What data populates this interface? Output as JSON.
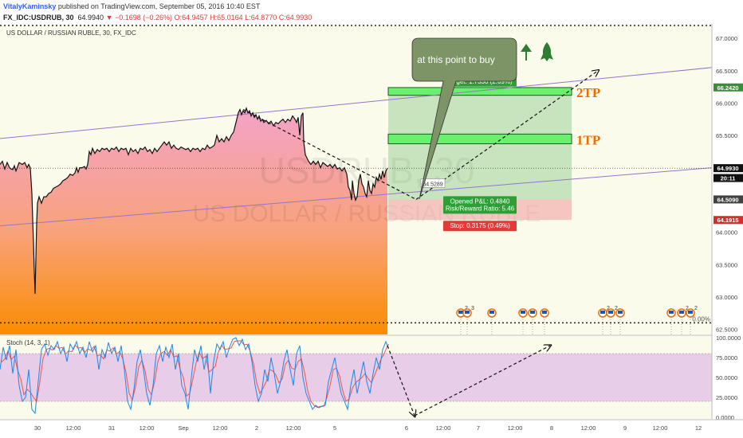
{
  "publish": {
    "author": "VitalyKaminsky",
    "text": "published on TradingView.com, September 05, 2016 10:40 EST"
  },
  "quote": {
    "symbol": "FX_IDC:USDRUB, 30",
    "last": "64.9940",
    "change": "▼ −0.1698 (−0.26%)",
    "o": "O:64.9457",
    "h": "H:65.0164",
    "l": "L:64.8770",
    "c": "C:64.9930"
  },
  "chart_data": {
    "type": "line",
    "title": "US DOLLAR / RUSSIAN RUBLE, 30, FX_IDC",
    "watermark": {
      "symbol": "USDRUB, 30",
      "name": "US DOLLAR / RUSSIAN RUBLE"
    },
    "price_axis": {
      "min": 62.42,
      "max": 67.2,
      "ticks": [
        "67.0000",
        "66.5000",
        "66.0000",
        "65.5000",
        "65.0000",
        "64.5000",
        "64.0000",
        "63.5000",
        "63.0000",
        "62.5000"
      ]
    },
    "time_axis": {
      "ticks": [
        "30",
        "12:00",
        "31",
        "12:00",
        "Sep",
        "12:00",
        "2",
        "12:00",
        "5",
        "6",
        "12:00",
        "7",
        "12:00",
        "8",
        "12:00",
        "9",
        "12:00",
        "12"
      ]
    },
    "price_series": [
      [
        0,
        65.05
      ],
      [
        3,
        65.1
      ],
      [
        6,
        64.98
      ],
      [
        9,
        65.08
      ],
      [
        12,
        65.0
      ],
      [
        14,
        64.98
      ],
      [
        16,
        64.97
      ],
      [
        18,
        65.03
      ],
      [
        20,
        64.95
      ],
      [
        24,
        65.08
      ],
      [
        28,
        65.05
      ],
      [
        31,
        65.08
      ],
      [
        34,
        65.0
      ],
      [
        36,
        65.05
      ],
      [
        38,
        65.0
      ],
      [
        40,
        64.6
      ],
      [
        41,
        64.2
      ],
      [
        42,
        63.85
      ],
      [
        43,
        63.4
      ],
      [
        44,
        63.05
      ],
      [
        45,
        63.6
      ],
      [
        46,
        64.15
      ],
      [
        47,
        64.45
      ],
      [
        49,
        64.55
      ],
      [
        52,
        64.45
      ],
      [
        55,
        64.55
      ],
      [
        58,
        64.55
      ],
      [
        61,
        64.6
      ],
      [
        64,
        64.62
      ],
      [
        67,
        64.68
      ],
      [
        70,
        64.7
      ],
      [
        73,
        64.72
      ],
      [
        76,
        64.75
      ],
      [
        79,
        64.8
      ],
      [
        82,
        64.82
      ],
      [
        85,
        64.85
      ],
      [
        88,
        64.9
      ],
      [
        91,
        64.88
      ],
      [
        94,
        64.92
      ],
      [
        96,
        65.0
      ],
      [
        98,
        64.93
      ],
      [
        100,
        65.0
      ],
      [
        103,
        65.0
      ],
      [
        106,
        65.02
      ],
      [
        108,
        64.98
      ],
      [
        110,
        65.05
      ],
      [
        112,
        65.25
      ],
      [
        114,
        65.2
      ],
      [
        116,
        65.3
      ],
      [
        119,
        65.22
      ],
      [
        122,
        65.28
      ],
      [
        125,
        65.25
      ],
      [
        128,
        65.3
      ],
      [
        131,
        65.28
      ],
      [
        134,
        65.3
      ],
      [
        137,
        65.25
      ],
      [
        140,
        65.3
      ],
      [
        143,
        65.28
      ],
      [
        146,
        65.32
      ],
      [
        149,
        65.25
      ],
      [
        152,
        65.3
      ],
      [
        155,
        65.28
      ],
      [
        158,
        65.3
      ],
      [
        161,
        65.2
      ],
      [
        164,
        65.3
      ],
      [
        167,
        65.25
      ],
      [
        170,
        65.28
      ],
      [
        173,
        65.22
      ],
      [
        176,
        65.3
      ],
      [
        179,
        65.28
      ],
      [
        182,
        65.32
      ],
      [
        185,
        65.25
      ],
      [
        188,
        65.28
      ],
      [
        191,
        65.22
      ],
      [
        194,
        65.3
      ],
      [
        197,
        65.25
      ],
      [
        200,
        65.3
      ],
      [
        203,
        65.35
      ],
      [
        206,
        65.4
      ],
      [
        209,
        65.35
      ],
      [
        212,
        65.4
      ],
      [
        215,
        65.3
      ],
      [
        218,
        65.35
      ],
      [
        221,
        65.3
      ],
      [
        224,
        65.28
      ],
      [
        227,
        65.32
      ],
      [
        230,
        65.3
      ],
      [
        233,
        65.28
      ],
      [
        236,
        65.3
      ],
      [
        239,
        65.25
      ],
      [
        242,
        65.3
      ],
      [
        245,
        65.28
      ],
      [
        248,
        65.3
      ],
      [
        251,
        65.25
      ],
      [
        254,
        65.3
      ],
      [
        257,
        65.28
      ],
      [
        260,
        65.35
      ],
      [
        263,
        65.3
      ],
      [
        266,
        65.32
      ],
      [
        269,
        65.35
      ],
      [
        272,
        65.5
      ],
      [
        275,
        65.4
      ],
      [
        278,
        65.45
      ],
      [
        281,
        65.4
      ],
      [
        284,
        65.48
      ],
      [
        287,
        65.42
      ],
      [
        290,
        65.5
      ],
      [
        293,
        65.55
      ],
      [
        295,
        65.65
      ],
      [
        297,
        65.75
      ],
      [
        299,
        65.85
      ],
      [
        301,
        65.9
      ],
      [
        303,
        65.82
      ],
      [
        305,
        65.88
      ],
      [
        307,
        65.85
      ],
      [
        309,
        65.92
      ],
      [
        311,
        65.85
      ],
      [
        313,
        65.88
      ],
      [
        315,
        65.8
      ],
      [
        317,
        65.85
      ],
      [
        319,
        65.78
      ],
      [
        321,
        65.82
      ],
      [
        323,
        65.75
      ],
      [
        325,
        65.8
      ],
      [
        327,
        65.72
      ],
      [
        329,
        65.75
      ],
      [
        331,
        65.7
      ],
      [
        334,
        65.73
      ],
      [
        337,
        65.68
      ],
      [
        340,
        65.72
      ],
      [
        343,
        65.65
      ],
      [
        346,
        65.7
      ],
      [
        349,
        65.68
      ],
      [
        352,
        65.72
      ],
      [
        355,
        65.75
      ],
      [
        358,
        65.7
      ],
      [
        361,
        65.75
      ],
      [
        364,
        65.72
      ],
      [
        367,
        65.8
      ],
      [
        370,
        65.75
      ],
      [
        372,
        65.7
      ],
      [
        374,
        65.78
      ],
      [
        376,
        65.5
      ],
      [
        378,
        65.8
      ],
      [
        380,
        65.85
      ],
      [
        381,
        65.4
      ],
      [
        383,
        65.2
      ],
      [
        385,
        65.15
      ],
      [
        387,
        65.1
      ],
      [
        390,
        65.05
      ],
      [
        393,
        65.1
      ],
      [
        396,
        65.05
      ],
      [
        399,
        65.1
      ],
      [
        402,
        65.0
      ],
      [
        405,
        65.08
      ],
      [
        408,
        65.05
      ],
      [
        411,
        65.02
      ],
      [
        414,
        65.05
      ],
      [
        417,
        65.0
      ],
      [
        420,
        65.05
      ],
      [
        423,
        64.98
      ],
      [
        426,
        65.0
      ],
      [
        429,
        64.95
      ],
      [
        432,
        65.0
      ],
      [
        435,
        64.9
      ],
      [
        437,
        64.7
      ],
      [
        439,
        64.65
      ],
      [
        441,
        64.5
      ],
      [
        442,
        64.8
      ],
      [
        444,
        64.6
      ],
      [
        446,
        64.5
      ],
      [
        448,
        64.55
      ],
      [
        450,
        64.8
      ],
      [
        452,
        64.9
      ],
      [
        454,
        64.75
      ],
      [
        456,
        64.7
      ],
      [
        458,
        64.6
      ],
      [
        460,
        64.55
      ],
      [
        462,
        64.8
      ],
      [
        464,
        64.65
      ],
      [
        466,
        64.6
      ],
      [
        468,
        64.75
      ],
      [
        470,
        64.7
      ],
      [
        472,
        64.85
      ],
      [
        474,
        64.8
      ],
      [
        476,
        64.9
      ],
      [
        478,
        64.82
      ],
      [
        480,
        64.95
      ],
      [
        482,
        64.85
      ],
      [
        484,
        64.95
      ],
      [
        486,
        64.99
      ]
    ],
    "channel_upper": {
      "from": [
        0,
        65.45
      ],
      "to": [
        893,
        66.55
      ]
    },
    "channel_lower": {
      "from": [
        0,
        64.1
      ],
      "to": [
        893,
        65.0
      ]
    },
    "horizontal_levels": [
      {
        "price": 67.2,
        "style": "dotted"
      },
      {
        "price": 62.6,
        "style": "dotted",
        "label": "0.00%"
      },
      {
        "price": 64.993,
        "style": "dotted-thin"
      }
    ],
    "position": {
      "entry": 64.509,
      "target": 66.242,
      "stop": 64.1915,
      "target_label": "Target: 1.7330 (2.69%)",
      "pl_label": "Opened P&L: 0.4840",
      "rr_label": "Risk/Reward Ratio: 5.46",
      "stop_label": "Stop: 0.3175 (0.49%)",
      "entry_tag": "64.5289"
    },
    "take_profit_zones": [
      {
        "label": "2TP",
        "low": 66.12,
        "high": 66.24
      },
      {
        "label": "1TP",
        "low": 65.37,
        "high": 65.52
      }
    ],
    "projection_path": [
      [
        305,
        65.9
      ],
      [
        522,
        64.509
      ],
      [
        750,
        66.5
      ]
    ],
    "price_labels": [
      {
        "text": "66.2420",
        "price": 66.242,
        "color": "#388e3c"
      },
      {
        "text": "64.9930",
        "price": 64.993,
        "color": "#111111"
      },
      {
        "text": "20:11",
        "price": 64.84,
        "color": "#111111"
      },
      {
        "text": "64.5090",
        "price": 64.509,
        "color": "#424242"
      },
      {
        "text": "64.1915",
        "price": 64.1915,
        "color": "#d32f2f"
      }
    ],
    "callout": "at this point to buy",
    "event_marker_groups": [
      [
        578,
        "2"
      ],
      [
        586,
        "3"
      ],
      [
        617,
        ""
      ],
      [
        656,
        ""
      ],
      [
        668,
        ""
      ],
      [
        683,
        ""
      ],
      [
        756,
        "2"
      ],
      [
        766,
        "2"
      ],
      [
        778,
        ""
      ],
      [
        842,
        ""
      ],
      [
        855,
        "2"
      ],
      [
        866,
        "2"
      ]
    ],
    "stochastic": {
      "title": "Stoch (14, 3, 1)",
      "ticks": [
        "100.0000",
        "75.0000",
        "50.0000",
        "25.0000",
        "0.0000"
      ],
      "upper_band": 80,
      "lower_band": 20,
      "k": [
        [
          0,
          60
        ],
        [
          4,
          88
        ],
        [
          8,
          72
        ],
        [
          12,
          90
        ],
        [
          16,
          55
        ],
        [
          20,
          85
        ],
        [
          24,
          40
        ],
        [
          28,
          20
        ],
        [
          32,
          25
        ],
        [
          36,
          60
        ],
        [
          40,
          10
        ],
        [
          44,
          5
        ],
        [
          48,
          45
        ],
        [
          52,
          85
        ],
        [
          56,
          92
        ],
        [
          60,
          78
        ],
        [
          64,
          90
        ],
        [
          68,
          85
        ],
        [
          72,
          95
        ],
        [
          76,
          80
        ],
        [
          80,
          88
        ],
        [
          84,
          70
        ],
        [
          88,
          92
        ],
        [
          92,
          85
        ],
        [
          96,
          95
        ],
        [
          100,
          80
        ],
        [
          104,
          88
        ],
        [
          108,
          75
        ],
        [
          112,
          95
        ],
        [
          116,
          82
        ],
        [
          120,
          90
        ],
        [
          124,
          60
        ],
        [
          128,
          85
        ],
        [
          132,
          75
        ],
        [
          136,
          94
        ],
        [
          140,
          80
        ],
        [
          144,
          88
        ],
        [
          148,
          70
        ],
        [
          152,
          90
        ],
        [
          156,
          60
        ],
        [
          160,
          20
        ],
        [
          164,
          10
        ],
        [
          168,
          35
        ],
        [
          172,
          70
        ],
        [
          176,
          85
        ],
        [
          180,
          60
        ],
        [
          184,
          30
        ],
        [
          188,
          15
        ],
        [
          192,
          40
        ],
        [
          196,
          80
        ],
        [
          200,
          90
        ],
        [
          204,
          70
        ],
        [
          208,
          88
        ],
        [
          212,
          75
        ],
        [
          216,
          92
        ],
        [
          220,
          60
        ],
        [
          224,
          80
        ],
        [
          228,
          40
        ],
        [
          232,
          30
        ],
        [
          236,
          10
        ],
        [
          240,
          50
        ],
        [
          244,
          85
        ],
        [
          248,
          70
        ],
        [
          252,
          90
        ],
        [
          256,
          60
        ],
        [
          260,
          80
        ],
        [
          264,
          30
        ],
        [
          268,
          70
        ],
        [
          272,
          92
        ],
        [
          276,
          85
        ],
        [
          280,
          95
        ],
        [
          284,
          75
        ],
        [
          288,
          88
        ],
        [
          292,
          98
        ],
        [
          296,
          100
        ],
        [
          300,
          90
        ],
        [
          304,
          98
        ],
        [
          308,
          85
        ],
        [
          312,
          92
        ],
        [
          316,
          70
        ],
        [
          320,
          40
        ],
        [
          324,
          20
        ],
        [
          328,
          30
        ],
        [
          332,
          60
        ],
        [
          336,
          45
        ],
        [
          340,
          75
        ],
        [
          344,
          55
        ],
        [
          348,
          30
        ],
        [
          352,
          45
        ],
        [
          356,
          70
        ],
        [
          360,
          85
        ],
        [
          364,
          60
        ],
        [
          368,
          40
        ],
        [
          372,
          80
        ],
        [
          376,
          90
        ],
        [
          380,
          50
        ],
        [
          384,
          30
        ],
        [
          388,
          20
        ],
        [
          392,
          10
        ],
        [
          396,
          15
        ],
        [
          400,
          12
        ],
        [
          404,
          14
        ],
        [
          408,
          15
        ],
        [
          412,
          45
        ],
        [
          416,
          60
        ],
        [
          420,
          75
        ],
        [
          424,
          50
        ],
        [
          428,
          30
        ],
        [
          432,
          20
        ],
        [
          436,
          10
        ],
        [
          440,
          40
        ],
        [
          444,
          60
        ],
        [
          448,
          30
        ],
        [
          452,
          50
        ],
        [
          456,
          70
        ],
        [
          460,
          45
        ],
        [
          464,
          30
        ],
        [
          468,
          55
        ],
        [
          472,
          75
        ],
        [
          476,
          60
        ],
        [
          480,
          85
        ],
        [
          484,
          95
        ],
        [
          486,
          90
        ]
      ],
      "projection": [
        [
          486,
          90
        ],
        [
          520,
          2
        ],
        [
          690,
          90
        ]
      ]
    }
  }
}
